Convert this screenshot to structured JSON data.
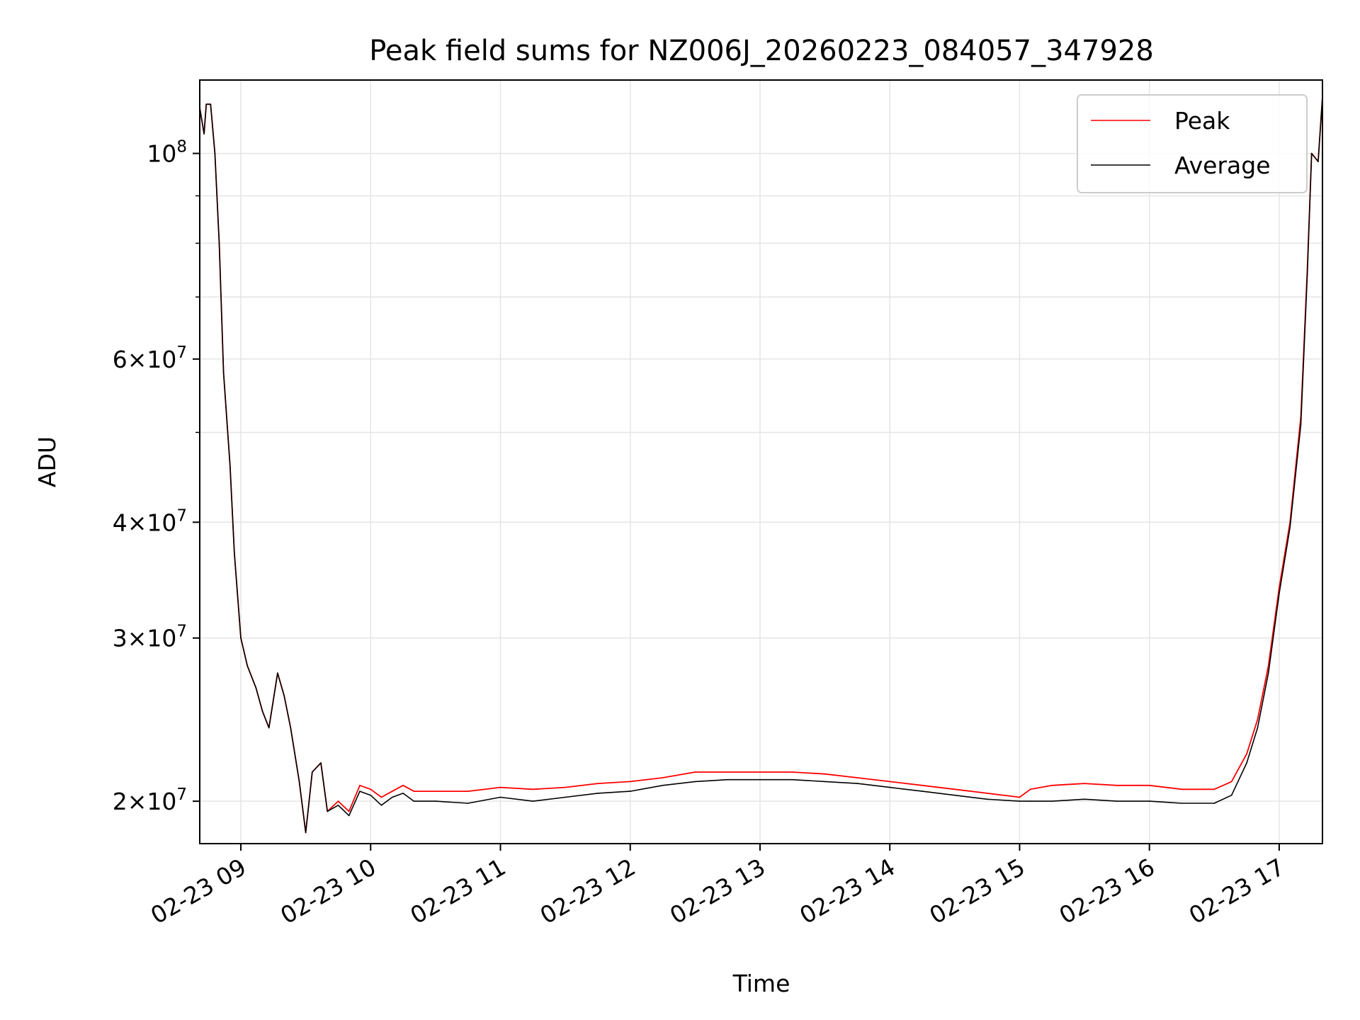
{
  "chart_data": {
    "type": "line",
    "title": "Peak field sums for NZ006J_20260223_084057_347928",
    "xlabel": "Time",
    "ylabel": "ADU",
    "yscale": "log",
    "grid": true,
    "legend_position": "top-right",
    "x_range": [
      "2026-02-23 08:41",
      "2026-02-23 17:20"
    ],
    "ylim": [
      18000000,
      120000000
    ],
    "x_ticks": [
      "02-23 09",
      "02-23 10",
      "02-23 11",
      "02-23 12",
      "02-23 13",
      "02-23 14",
      "02-23 15",
      "02-23 16",
      "02-23 17"
    ],
    "y_ticks": [
      {
        "value": 20000000,
        "mantissa": "2",
        "exponent": "7"
      },
      {
        "value": 30000000,
        "mantissa": "3",
        "exponent": "7"
      },
      {
        "value": 40000000,
        "mantissa": "4",
        "exponent": "7"
      },
      {
        "value": 60000000,
        "mantissa": "6",
        "exponent": "7"
      },
      {
        "value": 100000000,
        "mantissa": "",
        "exponent": "8"
      }
    ],
    "series": [
      {
        "name": "Peak",
        "color": "#ff0000",
        "x": [
          "08:41",
          "08:43",
          "08:44",
          "08:46",
          "08:48",
          "08:50",
          "08:52",
          "08:55",
          "08:57",
          "09:00",
          "09:03",
          "09:07",
          "09:10",
          "09:13",
          "09:17",
          "09:20",
          "09:23",
          "09:27",
          "09:30",
          "09:33",
          "09:37",
          "09:40",
          "09:45",
          "09:50",
          "09:55",
          "10:00",
          "10:05",
          "10:10",
          "10:15",
          "10:20",
          "10:30",
          "10:45",
          "11:00",
          "11:15",
          "11:30",
          "11:45",
          "12:00",
          "12:15",
          "12:30",
          "12:45",
          "13:00",
          "13:15",
          "13:30",
          "13:45",
          "14:00",
          "14:15",
          "14:30",
          "14:45",
          "15:00",
          "15:05",
          "15:15",
          "15:30",
          "15:45",
          "16:00",
          "16:15",
          "16:30",
          "16:38",
          "16:45",
          "16:50",
          "16:55",
          "17:00",
          "17:05",
          "17:10",
          "17:13",
          "17:15",
          "17:18",
          "17:20"
        ],
        "y": [
          112000000,
          105000000,
          113000000,
          113000000,
          100000000,
          80000000,
          58000000,
          46000000,
          37000000,
          30000000,
          28000000,
          26500000,
          25000000,
          24000000,
          27500000,
          26000000,
          24000000,
          21000000,
          18500000,
          21500000,
          22000000,
          19500000,
          20000000,
          19500000,
          20800000,
          20600000,
          20200000,
          20500000,
          20800000,
          20500000,
          20500000,
          20500000,
          20700000,
          20600000,
          20700000,
          20900000,
          21000000,
          21200000,
          21500000,
          21500000,
          21500000,
          21500000,
          21400000,
          21200000,
          21000000,
          20800000,
          20600000,
          20400000,
          20200000,
          20600000,
          20800000,
          20900000,
          20800000,
          20800000,
          20600000,
          20600000,
          21000000,
          22500000,
          24500000,
          28000000,
          34000000,
          40000000,
          52000000,
          75000000,
          100000000,
          98000000,
          115000000
        ]
      },
      {
        "name": "Average",
        "color": "#000000",
        "x": [
          "08:41",
          "08:43",
          "08:44",
          "08:46",
          "08:48",
          "08:50",
          "08:52",
          "08:55",
          "08:57",
          "09:00",
          "09:03",
          "09:07",
          "09:10",
          "09:13",
          "09:17",
          "09:20",
          "09:23",
          "09:27",
          "09:30",
          "09:33",
          "09:37",
          "09:40",
          "09:45",
          "09:50",
          "09:55",
          "10:00",
          "10:05",
          "10:10",
          "10:15",
          "10:20",
          "10:30",
          "10:45",
          "11:00",
          "11:15",
          "11:30",
          "11:45",
          "12:00",
          "12:15",
          "12:30",
          "12:45",
          "13:00",
          "13:15",
          "13:30",
          "13:45",
          "14:00",
          "14:15",
          "14:30",
          "14:45",
          "15:00",
          "15:05",
          "15:15",
          "15:30",
          "15:45",
          "16:00",
          "16:15",
          "16:30",
          "16:38",
          "16:45",
          "16:50",
          "16:55",
          "17:00",
          "17:05",
          "17:10",
          "17:13",
          "17:15",
          "17:18",
          "17:20"
        ],
        "y": [
          112000000,
          105000000,
          113000000,
          113000000,
          100000000,
          80000000,
          58000000,
          46000000,
          37000000,
          30000000,
          28000000,
          26500000,
          25000000,
          24000000,
          27500000,
          26000000,
          24000000,
          21000000,
          18500000,
          21500000,
          22000000,
          19500000,
          19800000,
          19300000,
          20500000,
          20300000,
          19800000,
          20200000,
          20400000,
          20000000,
          20000000,
          19900000,
          20200000,
          20000000,
          20200000,
          20400000,
          20500000,
          20800000,
          21000000,
          21100000,
          21100000,
          21100000,
          21000000,
          20900000,
          20700000,
          20500000,
          20300000,
          20100000,
          20000000,
          20000000,
          20000000,
          20100000,
          20000000,
          20000000,
          19900000,
          19900000,
          20300000,
          22000000,
          24000000,
          27500000,
          33500000,
          39500000,
          51000000,
          74000000,
          100000000,
          98000000,
          115000000
        ]
      }
    ]
  }
}
